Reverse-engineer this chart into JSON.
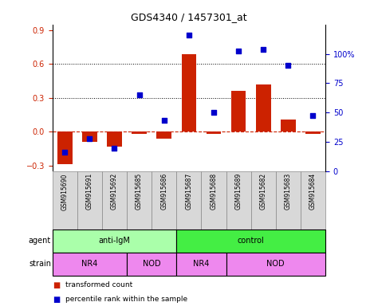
{
  "title": "GDS4340 / 1457301_at",
  "samples": [
    "GSM915690",
    "GSM915691",
    "GSM915692",
    "GSM915685",
    "GSM915686",
    "GSM915687",
    "GSM915688",
    "GSM915689",
    "GSM915682",
    "GSM915683",
    "GSM915684"
  ],
  "bar_values": [
    -0.285,
    -0.09,
    -0.13,
    -0.02,
    -0.06,
    0.69,
    -0.02,
    0.36,
    0.42,
    0.11,
    -0.02
  ],
  "scatter_values": [
    0.13,
    0.22,
    0.16,
    0.52,
    0.35,
    0.93,
    0.4,
    0.82,
    0.83,
    0.72,
    0.38
  ],
  "bar_color": "#cc2200",
  "scatter_color": "#0000cc",
  "ylim_left": [
    -0.35,
    0.95
  ],
  "ylim_right": [
    0,
    125
  ],
  "yticks_left": [
    -0.3,
    0.0,
    0.3,
    0.6,
    0.9
  ],
  "yticks_right": [
    0,
    25,
    50,
    75,
    100
  ],
  "ytick_labels_right": [
    "0",
    "25",
    "50",
    "75",
    "100%"
  ],
  "hlines": [
    0.3,
    0.6
  ],
  "agent_labels": [
    {
      "label": "anti-IgM",
      "start": 0,
      "end": 5
    },
    {
      "label": "control",
      "start": 5,
      "end": 11
    }
  ],
  "agent_colors": [
    "#aaffaa",
    "#44ee44"
  ],
  "strain_labels": [
    {
      "label": "NR4",
      "start": 0,
      "end": 3
    },
    {
      "label": "NOD",
      "start": 3,
      "end": 5
    },
    {
      "label": "NR4",
      "start": 5,
      "end": 7
    },
    {
      "label": "NOD",
      "start": 7,
      "end": 11
    }
  ],
  "strain_color": "#ee88ee",
  "legend_bar_label": "transformed count",
  "legend_scatter_label": "percentile rank within the sample",
  "zero_line_color": "#cc2200",
  "label_box_color": "#d8d8d8",
  "label_box_edge": "#888888"
}
